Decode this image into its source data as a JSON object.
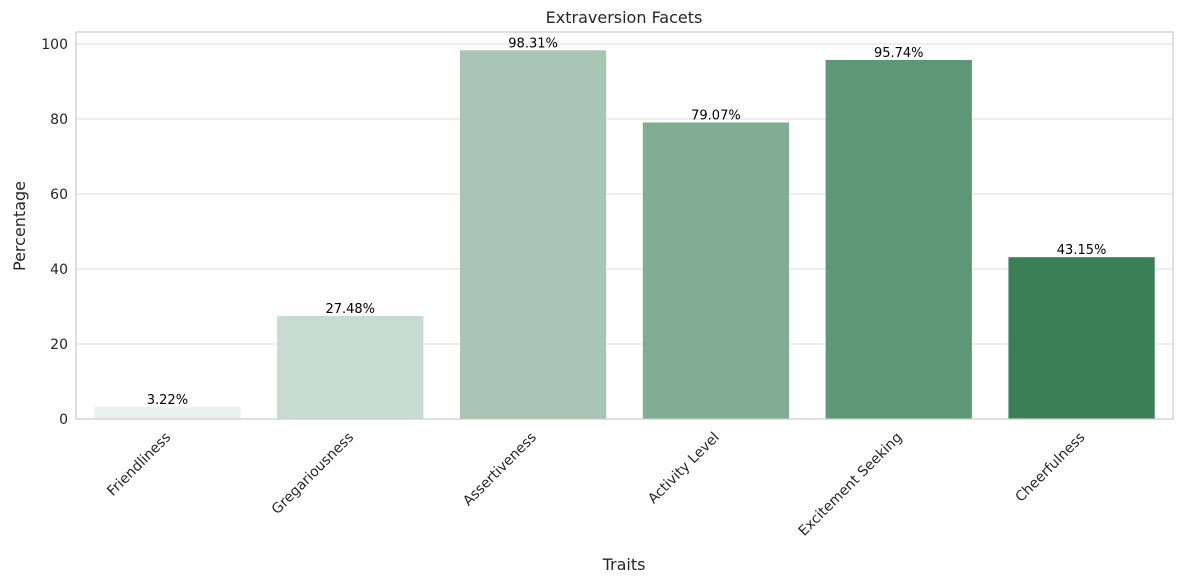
{
  "chart_data": {
    "type": "bar",
    "title": "Extraversion Facets",
    "xlabel": "Traits",
    "ylabel": "Percentage",
    "categories": [
      "Friendliness",
      "Gregariousness",
      "Assertiveness",
      "Activity Level",
      "Excitement Seeking",
      "Cheerfulness"
    ],
    "values": [
      3.22,
      27.48,
      98.31,
      79.07,
      95.74,
      43.15
    ],
    "data_labels": [
      "3.22%",
      "27.48%",
      "98.31%",
      "79.07%",
      "95.74%",
      "43.15%"
    ],
    "colors": [
      "#ebf1ed",
      "#c6dbd1",
      "#a7c5b2",
      "#81ad95",
      "#5e9776",
      "#3a7f58"
    ],
    "ylim": [
      0,
      103.2
    ],
    "yticks": [
      0,
      20,
      40,
      60,
      80,
      100
    ],
    "grid": true,
    "legend": "none"
  }
}
